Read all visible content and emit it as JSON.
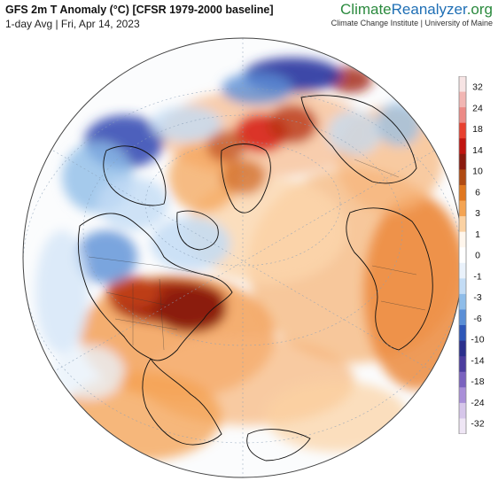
{
  "header": {
    "title": "GFS 2m T Anomaly (°C) [CFSR 1979-2000 baseline]",
    "subtitle": "1-day Avg | Fri, Apr 14, 2023"
  },
  "brand": {
    "name_part1": "Climate",
    "name_part2": "Reanalyzer",
    "name_part3": ".org",
    "affiliation": "Climate Change Institute | University of Maine"
  },
  "legend": {
    "tick_labels": [
      "32",
      "24",
      "18",
      "14",
      "10",
      "6",
      "3",
      "1",
      "0",
      "-1",
      "-3",
      "-6",
      "-10",
      "-14",
      "-18",
      "-24",
      "-32"
    ],
    "colors": [
      "#f7e4e4",
      "#f2b6b3",
      "#ec8a86",
      "#e8402f",
      "#c0140f",
      "#8a1a0e",
      "#b04a12",
      "#e0771f",
      "#f4a453",
      "#fbd2a3",
      "#fff6ec",
      "#ffffff",
      "#eaf2fb",
      "#c3dcf5",
      "#8fbde9",
      "#5b8fd6",
      "#2e57b8",
      "#2a2f8c",
      "#4b3c9e",
      "#7a62bf",
      "#a98fd8",
      "#d6c6ea",
      "#efe6f5"
    ]
  },
  "colors": {
    "ocean": "#f6fbfd",
    "coastline": "#111111",
    "warm_strong": "#8e1a0e",
    "warm": "#f2a05a",
    "cold_strong": "#2a35a0",
    "cold": "#9cc3ec"
  }
}
